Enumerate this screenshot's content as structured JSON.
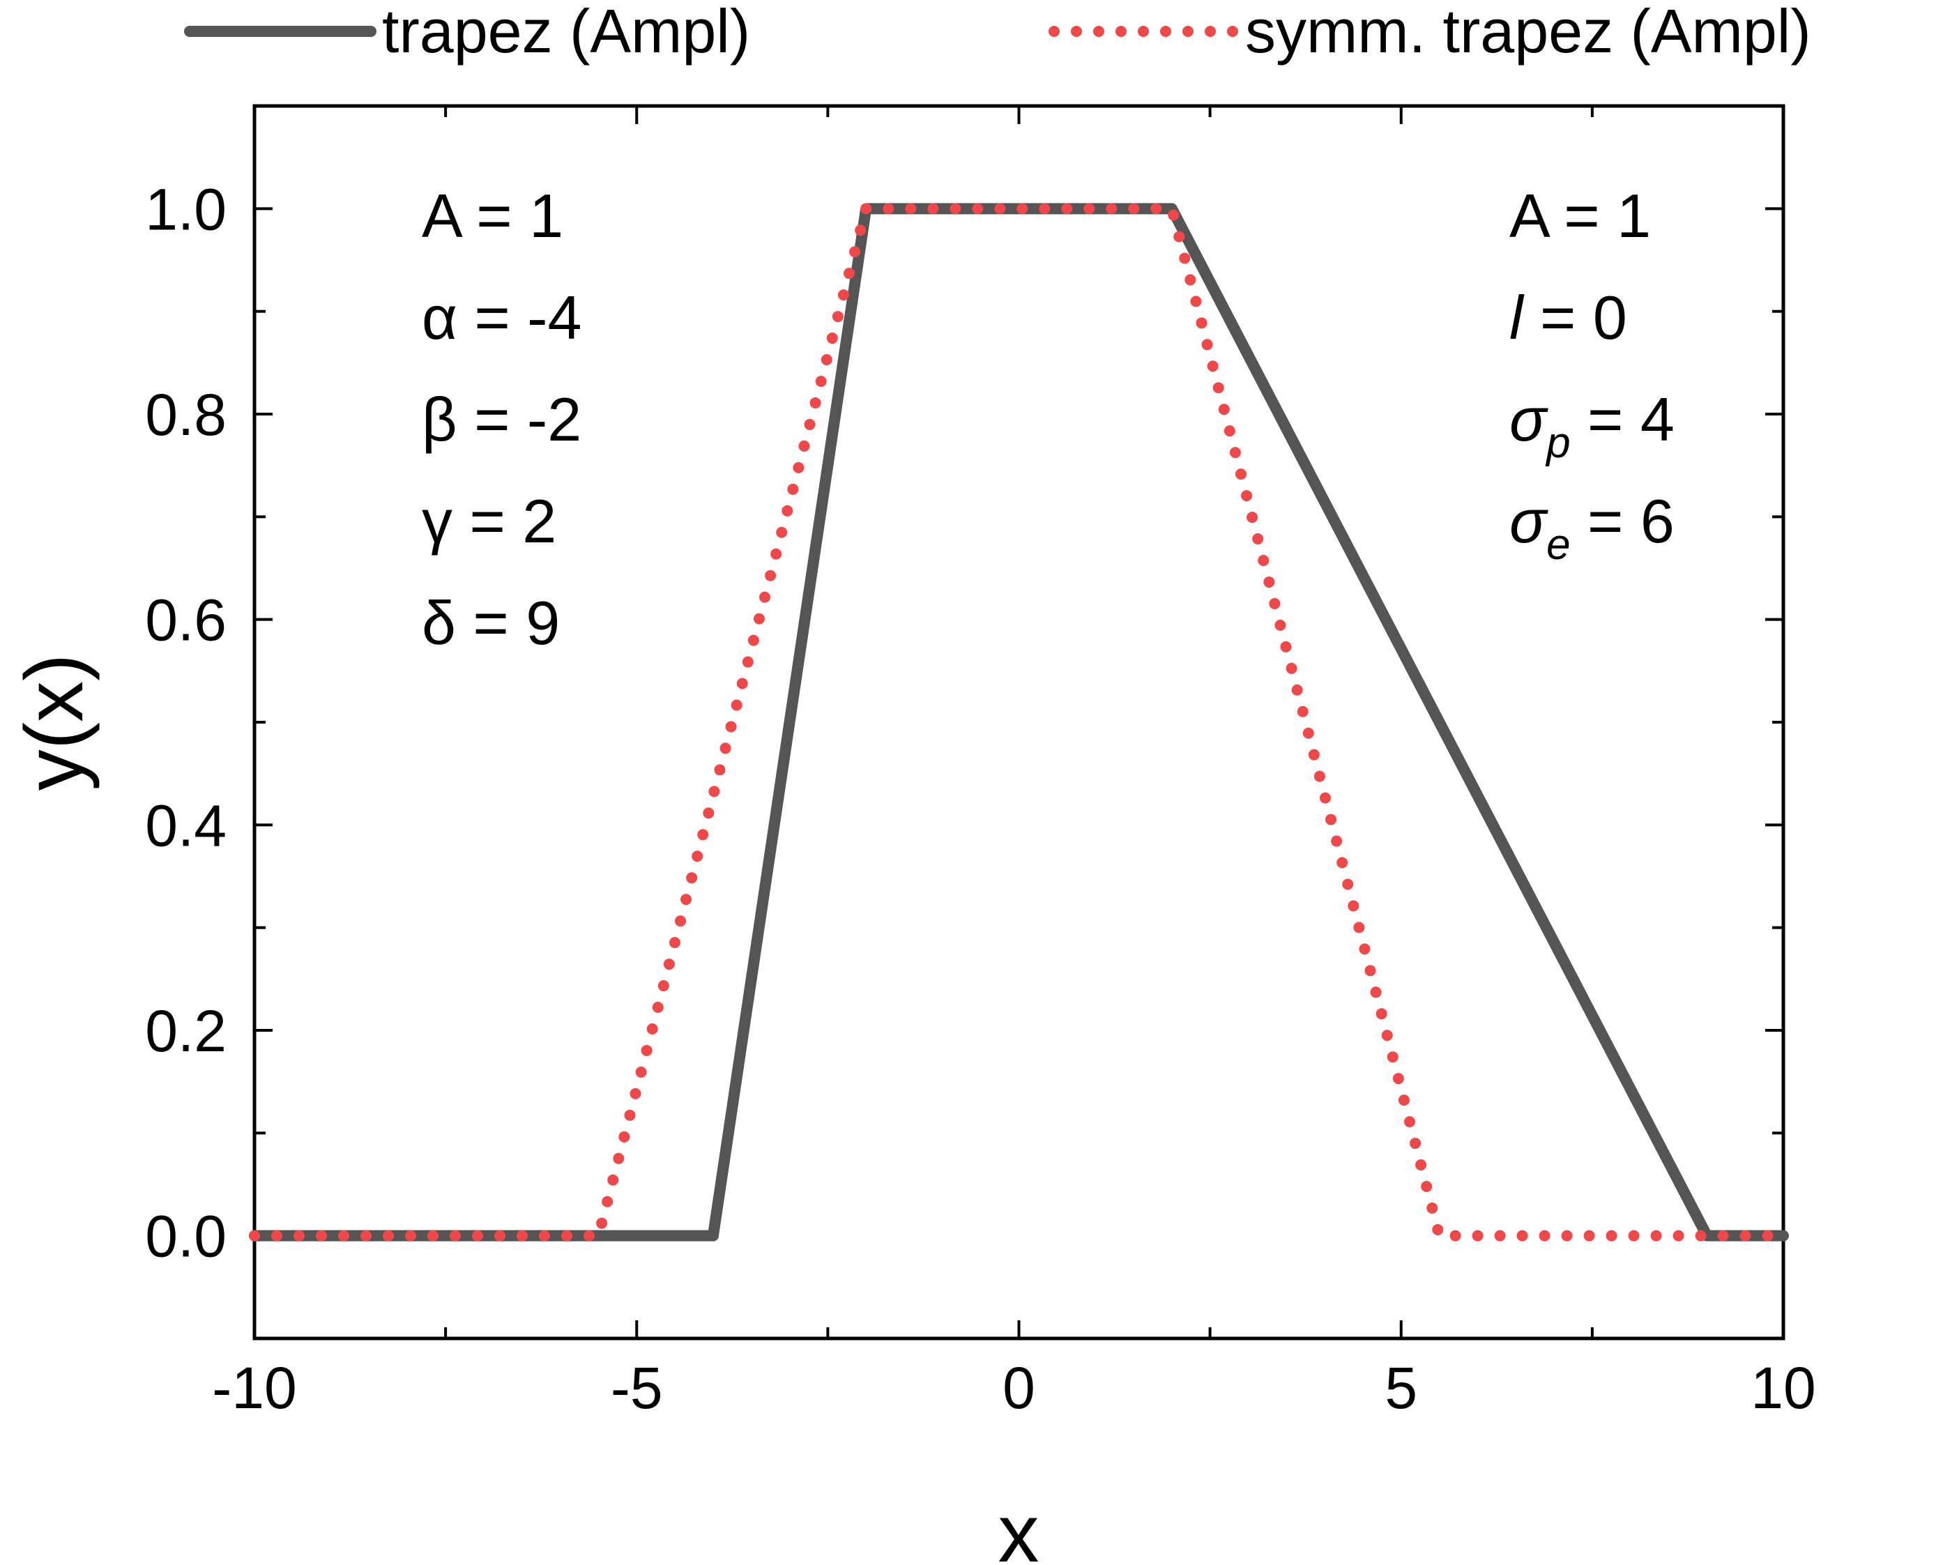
{
  "chart_data": {
    "type": "line",
    "title": "",
    "xlabel": "x",
    "ylabel": "y(x)",
    "xlim": [
      -10,
      10
    ],
    "ylim": [
      -0.1,
      1.1
    ],
    "x_ticks": [
      -10,
      -5,
      0,
      5,
      10
    ],
    "x_tick_labels": [
      "-10",
      "-5",
      "0",
      "5",
      "10"
    ],
    "y_ticks": [
      0.0,
      0.2,
      0.4,
      0.6,
      0.8,
      1.0
    ],
    "y_tick_labels": [
      "0.0",
      "0.2",
      "0.4",
      "0.6",
      "0.8",
      "1.0"
    ],
    "grid": false,
    "legend_position": "top",
    "series": [
      {
        "name": "trapez (Ampl)",
        "style": "solid",
        "color": "#555555",
        "x": [
          -10,
          -4,
          -2,
          2,
          9,
          10
        ],
        "y": [
          0,
          0,
          1,
          1,
          0,
          0
        ]
      },
      {
        "name": "symm. trapez (Ampl)",
        "style": "dotted",
        "color": "#f04848",
        "x": [
          -10,
          -5.5,
          -2,
          2,
          5.5,
          10
        ],
        "y": [
          0,
          0,
          1,
          1,
          0,
          0
        ]
      }
    ],
    "annotations": {
      "left": [
        {
          "sym": "A",
          "val": " = 1"
        },
        {
          "sym": "α",
          "val": " = -4"
        },
        {
          "sym": "β",
          "val": " = -2"
        },
        {
          "sym": "γ",
          "val": " = 2"
        },
        {
          "sym": "δ",
          "val": " = 9"
        }
      ],
      "right": [
        {
          "sym": "A",
          "sub": "",
          "val": " = 1"
        },
        {
          "sym": "l",
          "sub": "",
          "val": " = 0"
        },
        {
          "sym": "σ",
          "sub": "p",
          "val": " = 4"
        },
        {
          "sym": "σ",
          "sub": "e",
          "val": " = 6"
        }
      ]
    }
  }
}
